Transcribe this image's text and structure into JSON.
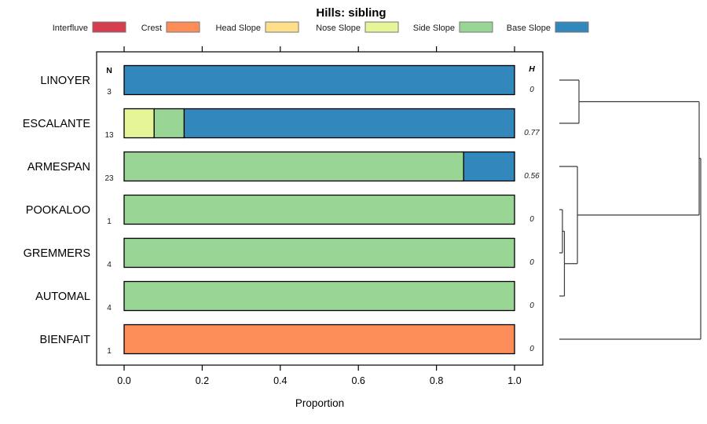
{
  "chart_data": {
    "type": "bar",
    "orientation": "horizontal",
    "stacked": true,
    "title": "Hills: sibling",
    "xlabel": "Proportion",
    "n_header": "N",
    "h_header": "H",
    "xlim": [
      0,
      1.07
    ],
    "xticks": [
      "0.0",
      "0.2",
      "0.4",
      "0.6",
      "0.8",
      "1.0"
    ],
    "grid": false,
    "legend_position": "top",
    "legend": [
      {
        "label": "Interfluve",
        "color": "#D53E4F"
      },
      {
        "label": "Crest",
        "color": "#FC8D59"
      },
      {
        "label": "Head Slope",
        "color": "#FEE08B"
      },
      {
        "label": "Nose Slope",
        "color": "#E6F598"
      },
      {
        "label": "Side Slope",
        "color": "#99D594"
      },
      {
        "label": "Base Slope",
        "color": "#3288BD"
      }
    ],
    "rows": [
      {
        "label": "LINOYER",
        "n": "3",
        "h": "0",
        "segments": [
          {
            "class": "Base Slope",
            "value": 1.0
          }
        ]
      },
      {
        "label": "ESCALANTE",
        "n": "13",
        "h": "0.77",
        "segments": [
          {
            "class": "Nose Slope",
            "value": 0.0769
          },
          {
            "class": "Side Slope",
            "value": 0.0769
          },
          {
            "class": "Base Slope",
            "value": 0.8462
          }
        ]
      },
      {
        "label": "ARMESPAN",
        "n": "23",
        "h": "0.56",
        "segments": [
          {
            "class": "Side Slope",
            "value": 0.8696
          },
          {
            "class": "Base Slope",
            "value": 0.1304
          }
        ]
      },
      {
        "label": "POOKALOO",
        "n": "1",
        "h": "0",
        "segments": [
          {
            "class": "Side Slope",
            "value": 1.0
          }
        ]
      },
      {
        "label": "GREMMERS",
        "n": "4",
        "h": "0",
        "segments": [
          {
            "class": "Side Slope",
            "value": 1.0
          }
        ]
      },
      {
        "label": "AUTOMAL",
        "n": "4",
        "h": "0",
        "segments": [
          {
            "class": "Side Slope",
            "value": 1.0
          }
        ]
      },
      {
        "label": "BIENFAIT",
        "n": "1",
        "h": "0",
        "segments": [
          {
            "class": "Crest",
            "value": 1.0
          }
        ]
      }
    ],
    "dendrogram": {
      "distance": 1.0,
      "children": [
        {
          "distance": 0.989,
          "children": [
            {
              "distance": 0.139,
              "children": [
                {
                  "leaf": "LINOYER"
                },
                {
                  "leaf": "ESCALANTE"
                }
              ]
            },
            {
              "distance": 0.128,
              "children": [
                {
                  "leaf": "ARMESPAN"
                },
                {
                  "distance": 0.036,
                  "children": [
                    {
                      "distance": 0.022,
                      "children": [
                        {
                          "leaf": "POOKALOO"
                        },
                        {
                          "leaf": "GREMMERS"
                        }
                      ]
                    },
                    {
                      "leaf": "AUTOMAL"
                    }
                  ]
                }
              ]
            }
          ]
        },
        {
          "leaf": "BIENFAIT"
        }
      ]
    }
  }
}
